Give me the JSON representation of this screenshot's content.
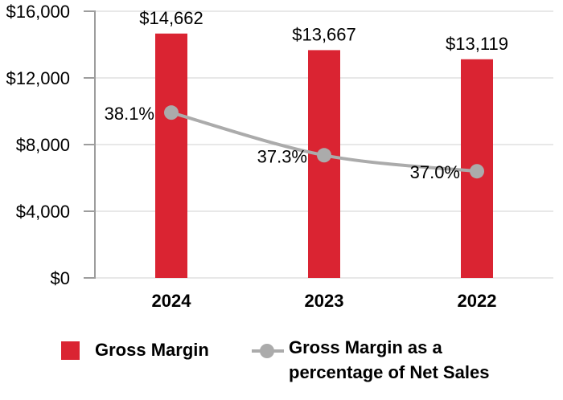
{
  "chart_data": {
    "type": "bar",
    "subtype": "bar+line-combo",
    "categories": [
      "2024",
      "2023",
      "2022"
    ],
    "series": [
      {
        "name": "Gross Margin",
        "kind": "bar",
        "values": [
          14662,
          13667,
          13119
        ],
        "labels": [
          "$14,662",
          "$13,667",
          "$13,119"
        ],
        "color": "#DA2432",
        "axis": "left"
      },
      {
        "name": "Gross Margin as a percentage of Net Sales",
        "kind": "line",
        "values": [
          38.1,
          37.3,
          37.0
        ],
        "labels": [
          "38.1%",
          "37.3%",
          "37.0%"
        ],
        "color": "#ABABAB",
        "axis": "right"
      }
    ],
    "left_axis": {
      "min": 0,
      "max": 16000,
      "tick_step": 4000,
      "tick_labels": [
        "$0",
        "$4,000",
        "$8,000",
        "$12,000",
        "$16,000"
      ]
    },
    "right_axis": {
      "min": 35,
      "max": 40,
      "visible": false
    },
    "grid": true,
    "legend_position": "bottom",
    "title": "",
    "xlabel": "",
    "ylabel": ""
  },
  "legend": {
    "items": [
      {
        "label": "Gross Margin",
        "swatch": "square",
        "color": "#DA2432"
      },
      {
        "label": "Gross Margin as a percentage of Net Sales",
        "swatch": "line-dot",
        "color": "#ABABAB"
      }
    ]
  },
  "colors": {
    "bar_red": "#DA2432",
    "line_gray": "#ABABAB",
    "grid": "#E8E8E8",
    "axis": "#9D9D9D",
    "text": "#000000",
    "background": "#FFFFFF"
  }
}
